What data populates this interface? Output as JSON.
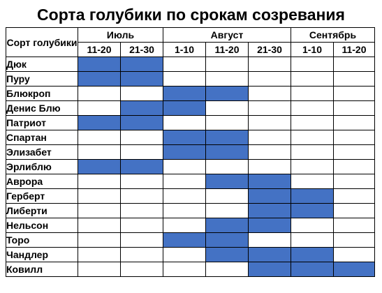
{
  "title": "Сорта голубики по срокам созревания",
  "colors": {
    "ripe_fill": "#4472c4",
    "empty_fill": "#ffffff",
    "grid_line": "#000000"
  },
  "header": {
    "variety_label": "Сорт голубики",
    "months": [
      {
        "label": "Июль",
        "span": 2
      },
      {
        "label": "Август",
        "span": 3
      },
      {
        "label": "Сентябрь",
        "span": 2
      }
    ],
    "periods": [
      "11-20",
      "21-30",
      "1-10",
      "11-20",
      "21-30",
      "1-10",
      "11-20"
    ]
  },
  "rows": [
    {
      "name": "Дюк",
      "cells": [
        1,
        1,
        0,
        0,
        0,
        0,
        0
      ]
    },
    {
      "name": "Пуру",
      "cells": [
        1,
        1,
        0,
        0,
        0,
        0,
        0
      ]
    },
    {
      "name": "Блюкроп",
      "cells": [
        0,
        0,
        1,
        1,
        0,
        0,
        0
      ]
    },
    {
      "name": "Денис Блю",
      "cells": [
        0,
        1,
        1,
        0,
        0,
        0,
        0
      ]
    },
    {
      "name": "Патриот",
      "cells": [
        1,
        1,
        0,
        0,
        0,
        0,
        0
      ]
    },
    {
      "name": "Спартан",
      "cells": [
        0,
        0,
        1,
        1,
        0,
        0,
        0
      ]
    },
    {
      "name": "Элизабет",
      "cells": [
        0,
        0,
        1,
        1,
        0,
        0,
        0
      ]
    },
    {
      "name": "Эрлиблю",
      "cells": [
        1,
        1,
        0,
        0,
        0,
        0,
        0
      ]
    },
    {
      "name": "Аврора",
      "cells": [
        0,
        0,
        0,
        1,
        1,
        0,
        0
      ]
    },
    {
      "name": "Герберт",
      "cells": [
        0,
        0,
        0,
        0,
        1,
        1,
        0
      ]
    },
    {
      "name": "Либерти",
      "cells": [
        0,
        0,
        0,
        0,
        1,
        1,
        0
      ]
    },
    {
      "name": "Нельсон",
      "cells": [
        0,
        0,
        0,
        1,
        1,
        0,
        0
      ]
    },
    {
      "name": "Торо",
      "cells": [
        0,
        0,
        1,
        1,
        0,
        0,
        0
      ]
    },
    {
      "name": "Чандлер",
      "cells": [
        0,
        0,
        0,
        1,
        1,
        1,
        0
      ]
    },
    {
      "name": "Ковилл",
      "cells": [
        0,
        0,
        0,
        0,
        1,
        1,
        1
      ]
    }
  ]
}
